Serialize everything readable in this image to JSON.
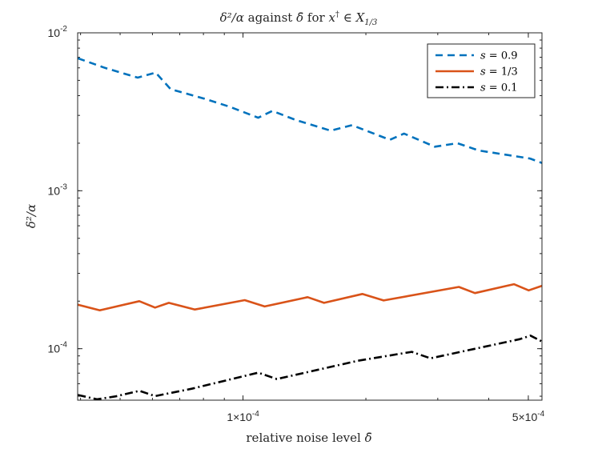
{
  "chart_data": {
    "type": "line",
    "title": "δ²/α against δ̄ for x† ∈ X1/3",
    "title_parts": {
      "lhs": "δ²/α",
      "middle": "against",
      "delta_bar": "δ̄",
      "for": "for",
      "x": "x",
      "dagger": "†",
      "in": "∈",
      "set": "X",
      "set_sub": "1/3"
    },
    "xlabel": "relative noise level δ̄",
    "xlabel_parts": {
      "text": "relative noise level",
      "sym": "δ̄"
    },
    "ylabel": "δ²/α",
    "xscale": "log",
    "yscale": "log",
    "xlim": [
      3.935e-05,
      0.00054
    ],
    "ylim": [
      4.72e-05,
      0.01
    ],
    "x_ticks": [
      {
        "value": 0.0001,
        "label": "1×10",
        "exp": "-4"
      },
      {
        "value": 0.0005,
        "label": "5×10",
        "exp": "-4"
      }
    ],
    "y_ticks": [
      {
        "value": 0.01,
        "base": "10",
        "exp": "-2"
      },
      {
        "value": 0.001,
        "base": "10",
        "exp": "-3"
      },
      {
        "value": 0.0001,
        "base": "10",
        "exp": "-4"
      }
    ],
    "legend_position": "top-right",
    "series": [
      {
        "name": "s = 0.9",
        "legend_var": "s",
        "legend_value": "= 0.9",
        "color": "#0072BD",
        "dash": "9,6",
        "x": [
          3.94e-05,
          4.59e-05,
          5.52e-05,
          6.11e-05,
          6.65e-05,
          8.12e-05,
          9.29e-05,
          0.000109,
          0.000118,
          0.000135,
          0.000164,
          0.000185,
          0.000229,
          0.000248,
          0.000295,
          0.000335,
          0.000378,
          0.000505,
          0.00054
        ],
        "y": [
          0.0069,
          0.006,
          0.0052,
          0.0056,
          0.0044,
          0.0038,
          0.0034,
          0.0029,
          0.0032,
          0.0028,
          0.0024,
          0.0026,
          0.0021,
          0.0023,
          0.0019,
          0.002,
          0.0018,
          0.0016,
          0.0015
        ]
      },
      {
        "name": "s = 1/3",
        "legend_var": "s",
        "legend_value": "= 1/3",
        "color": "#D95319",
        "dash": "",
        "x": [
          3.94e-05,
          4.46e-05,
          5.57e-05,
          6.09e-05,
          6.58e-05,
          7.62e-05,
          0.000101,
          0.000113,
          0.000144,
          0.000158,
          0.000196,
          0.000221,
          0.000338,
          0.00037,
          0.000461,
          0.000501,
          0.00054
        ],
        "y": [
          0.00019,
          0.000175,
          0.0002,
          0.000182,
          0.000195,
          0.000177,
          0.000203,
          0.000185,
          0.000212,
          0.000195,
          0.000222,
          0.000202,
          0.000246,
          0.000225,
          0.000256,
          0.000234,
          0.00025
        ]
      },
      {
        "name": "s = 0.1",
        "legend_var": "s",
        "legend_value": "= 0.1",
        "color": "#000000",
        "dash": "10,4,2,4",
        "x": [
          3.94e-05,
          4.39e-05,
          4.88e-05,
          5.58e-05,
          6.09e-05,
          7.49e-05,
          0.000109,
          0.000121,
          0.000191,
          0.000259,
          0.000288,
          0.000477,
          0.000506,
          0.00054
        ],
        "y": [
          5.09e-05,
          4.78e-05,
          4.99e-05,
          5.41e-05,
          5.01e-05,
          5.58e-05,
          7.05e-05,
          6.42e-05,
          8.38e-05,
          9.55e-05,
          8.69e-05,
          0.000115,
          0.000121,
          0.000111
        ]
      }
    ]
  }
}
